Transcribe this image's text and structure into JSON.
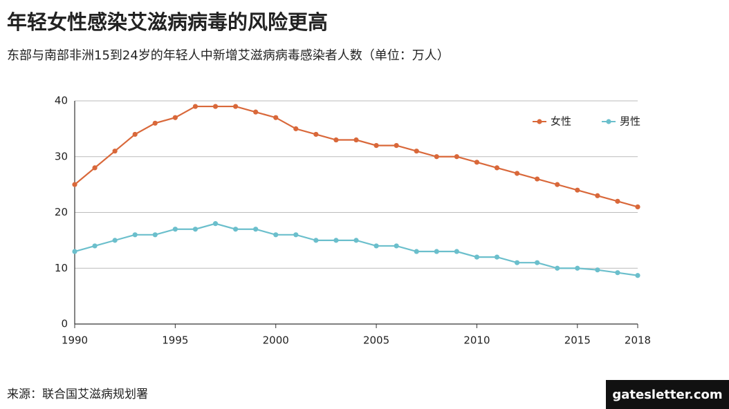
{
  "title": "年轻女性感染艾滋病病毒的风险更高",
  "subtitle": "东部与南部非洲15到24岁的年轻人中新增艾滋病病毒感染者人数（单位：万人）",
  "source": "来源：联合国艾滋病规划署",
  "brand": "gatesletter.com",
  "chart_data": {
    "type": "line",
    "x": [
      1990,
      1991,
      1992,
      1993,
      1994,
      1995,
      1996,
      1997,
      1998,
      1999,
      2000,
      2001,
      2002,
      2003,
      2004,
      2005,
      2006,
      2007,
      2008,
      2009,
      2010,
      2011,
      2012,
      2013,
      2014,
      2015,
      2016,
      2017,
      2018
    ],
    "series": [
      {
        "name": "女性",
        "color": "#d9683a",
        "values": [
          25,
          28,
          31,
          34,
          36,
          37,
          39,
          39,
          39,
          38,
          37,
          35,
          34,
          33,
          33,
          32,
          32,
          31,
          30,
          30,
          29,
          28,
          27,
          26,
          25,
          24,
          23,
          22,
          21
        ]
      },
      {
        "name": "男性",
        "color": "#6bbfcc",
        "values": [
          13,
          14,
          15,
          16,
          16,
          17,
          17,
          18,
          17,
          17,
          16,
          16,
          15,
          15,
          15,
          14,
          14,
          13,
          13,
          13,
          12,
          12,
          11,
          11,
          10,
          10,
          9.7,
          9.2,
          8.7
        ]
      }
    ],
    "xlim": [
      1990,
      2018
    ],
    "ylim": [
      0,
      40
    ],
    "xticks": [
      1990,
      1995,
      2000,
      2005,
      2010,
      2015,
      2018
    ],
    "yticks": [
      0,
      10,
      20,
      30,
      40
    ],
    "grid": true,
    "legend": "top-right"
  }
}
